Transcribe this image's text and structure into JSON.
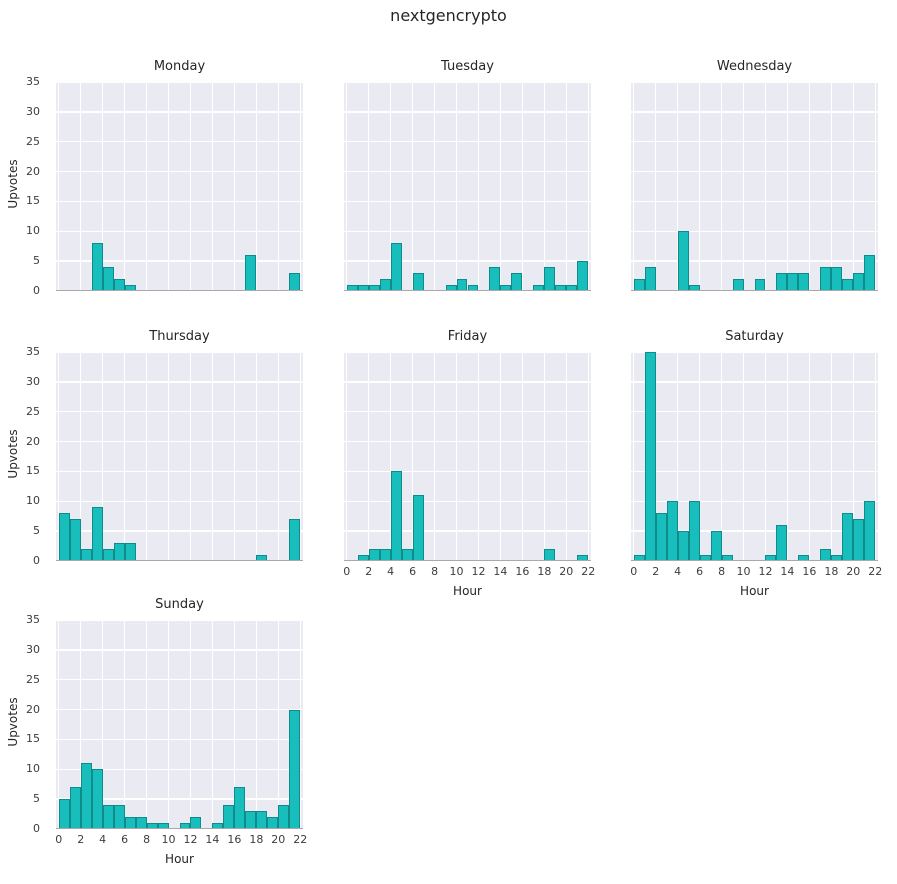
{
  "title": "nextgencrypto",
  "colors": {
    "bar_fill": "#17bebb",
    "bar_edge": "#0f8b8b",
    "plot_bg": "#eaeaf2",
    "grid": "#ffffff",
    "fig_bg": "#ffffff",
    "text_dark": "#262626",
    "text_tick": "#3d3d3d",
    "baseline": "#a9a9a9"
  },
  "axes": {
    "xlabel": "Hour",
    "ylabel": "Upvotes"
  },
  "chart_data": {
    "type": "bar",
    "title": "nextgencrypto",
    "xlabel": "Hour",
    "ylabel": "Upvotes",
    "x": [
      0,
      1,
      2,
      3,
      4,
      5,
      6,
      7,
      8,
      9,
      10,
      11,
      12,
      13,
      14,
      15,
      16,
      17,
      18,
      19,
      20,
      21,
      22,
      23
    ],
    "xticks": [
      0,
      2,
      4,
      6,
      8,
      10,
      12,
      14,
      16,
      18,
      20,
      22
    ],
    "yticks": [
      0,
      5,
      10,
      15,
      20,
      25,
      30,
      35
    ],
    "ylim": [
      0,
      35
    ],
    "xlim": [
      -0.25,
      22.25
    ],
    "grid": true,
    "legend": "none",
    "layout": {
      "rows": 3,
      "cols": 3,
      "note": "7 weekday subplots; Sunday alone on bottom row; bottom-left empty cells blank"
    },
    "series": [
      {
        "name": "Monday",
        "values": [
          0,
          0,
          0,
          8,
          4,
          2,
          1,
          0,
          0,
          0,
          0,
          0,
          0,
          0,
          0,
          0,
          0,
          6,
          0,
          0,
          0,
          3,
          0,
          0
        ]
      },
      {
        "name": "Tuesday",
        "values": [
          1,
          1,
          1,
          2,
          8,
          0,
          3,
          0,
          0,
          1,
          2,
          1,
          0,
          4,
          1,
          3,
          0,
          1,
          4,
          1,
          1,
          5,
          0,
          0
        ]
      },
      {
        "name": "Wednesday",
        "values": [
          2,
          4,
          0,
          0,
          10,
          1,
          0,
          0,
          0,
          2,
          0,
          2,
          0,
          3,
          3,
          3,
          0,
          4,
          4,
          2,
          3,
          6,
          0,
          0
        ]
      },
      {
        "name": "Thursday",
        "values": [
          8,
          7,
          2,
          9,
          2,
          3,
          3,
          0,
          0,
          0,
          0,
          0,
          0,
          0,
          0,
          0,
          0,
          0,
          1,
          0,
          0,
          7,
          0,
          0
        ]
      },
      {
        "name": "Friday",
        "values": [
          0,
          1,
          2,
          2,
          15,
          2,
          11,
          0,
          0,
          0,
          0,
          0,
          0,
          0,
          0,
          0,
          0,
          0,
          2,
          0,
          0,
          1,
          0,
          0
        ]
      },
      {
        "name": "Saturday",
        "values": [
          1,
          35,
          8,
          10,
          5,
          10,
          1,
          5,
          1,
          0,
          0,
          0,
          1,
          6,
          0,
          1,
          0,
          2,
          1,
          8,
          7,
          10,
          0,
          0
        ]
      },
      {
        "name": "Sunday",
        "values": [
          5,
          7,
          11,
          10,
          4,
          4,
          2,
          2,
          1,
          1,
          0,
          1,
          2,
          0,
          1,
          4,
          7,
          3,
          3,
          2,
          4,
          20,
          0,
          0
        ]
      }
    ]
  }
}
